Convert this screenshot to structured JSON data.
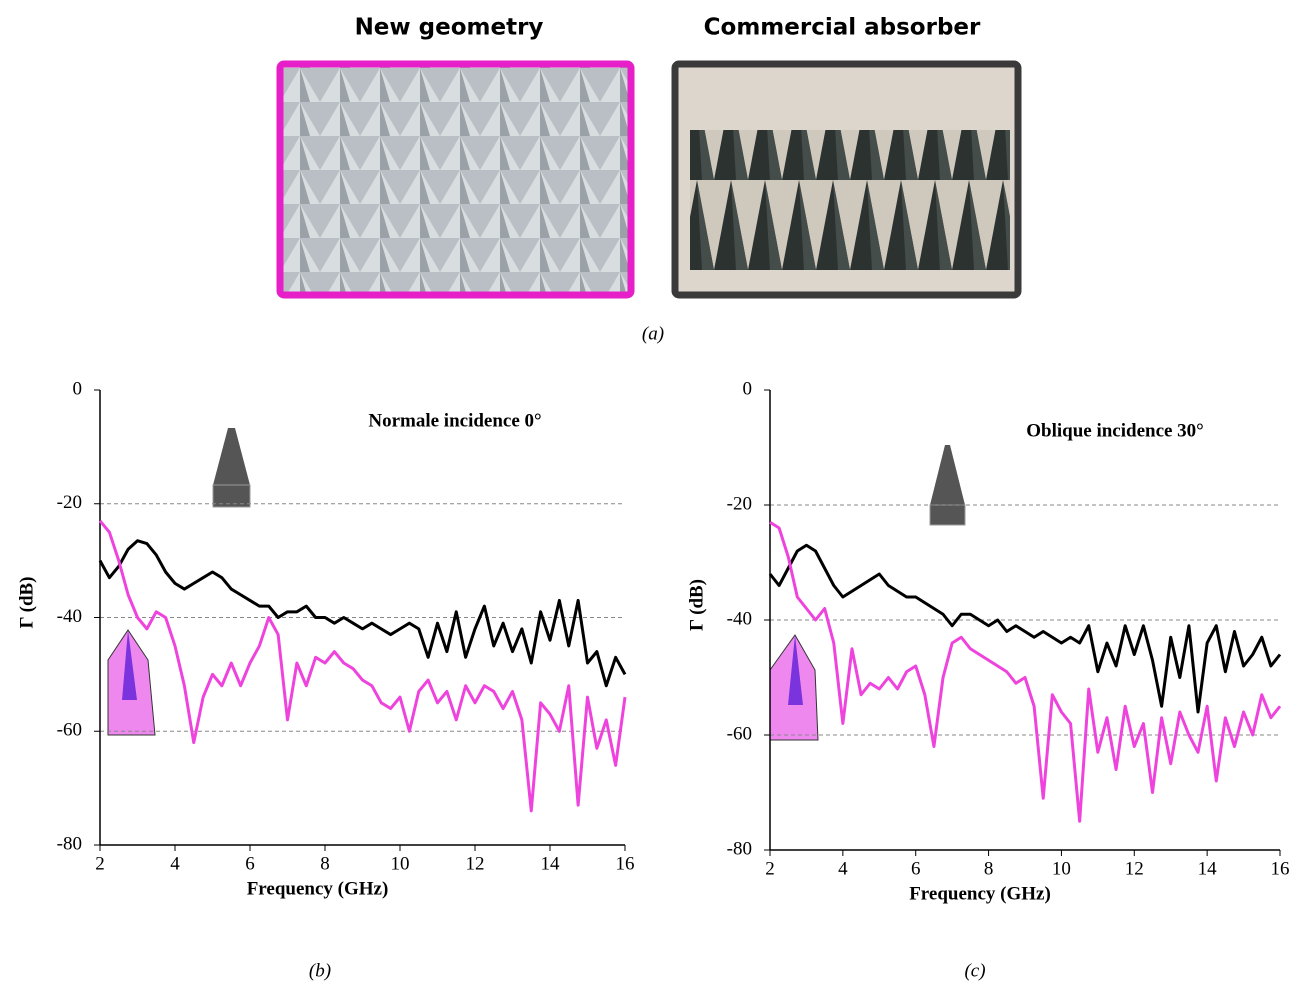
{
  "photos": [
    {
      "label": "New geometry"
    },
    {
      "label": "Commercial absorber"
    }
  ],
  "caption": "(a)",
  "chart_data": [
    {
      "type": "line",
      "annotation": "Normale incidence 0°",
      "caption": "(b)",
      "xlabel": "Frequency (GHz)",
      "ylabel": "Γ (dB)",
      "xlim": [
        2,
        16
      ],
      "ylim": [
        -80,
        0
      ],
      "xticks": [
        2,
        4,
        6,
        8,
        10,
        12,
        14,
        16
      ],
      "yticks": [
        -80,
        -60,
        -40,
        -20,
        0
      ],
      "grid": true,
      "x": [
        2,
        2.25,
        2.5,
        2.75,
        3,
        3.25,
        3.5,
        3.75,
        4,
        4.25,
        4.5,
        4.75,
        5,
        5.25,
        5.5,
        5.75,
        6,
        6.25,
        6.5,
        6.75,
        7,
        7.25,
        7.5,
        7.75,
        8,
        8.25,
        8.5,
        8.75,
        9,
        9.25,
        9.5,
        9.75,
        10,
        10.25,
        10.5,
        10.75,
        11,
        11.25,
        11.5,
        11.75,
        12,
        12.25,
        12.5,
        12.75,
        13,
        13.25,
        13.5,
        13.75,
        14,
        14.25,
        14.5,
        14.75,
        15,
        15.25,
        15.5,
        15.75,
        16
      ],
      "series": [
        {
          "color": "#000000",
          "values": [
            -30,
            -33,
            -31,
            -28,
            -26.5,
            -27,
            -29,
            -32,
            -34,
            -35,
            -34,
            -33,
            -32,
            -33,
            -35,
            -36,
            -37,
            -38,
            -38,
            -40,
            -39,
            -39,
            -38,
            -40,
            -40,
            -41,
            -40,
            -41,
            -42,
            -41,
            -42,
            -43,
            -42,
            -41,
            -42,
            -47,
            -41,
            -46,
            -39,
            -47,
            -42,
            -38,
            -45,
            -41,
            -46,
            -42,
            -48,
            -39,
            -44,
            -37,
            -45,
            -37,
            -48,
            -46,
            -52,
            -47,
            -50
          ]
        },
        {
          "color": "#ee44dd",
          "values": [
            -23,
            -25,
            -30,
            -36,
            -40,
            -42,
            -39,
            -40,
            -45,
            -52,
            -62,
            -54,
            -50,
            -52,
            -48,
            -52,
            -48,
            -45,
            -40,
            -43,
            -58,
            -48,
            -52,
            -47,
            -48,
            -46,
            -48,
            -49,
            -51,
            -52,
            -55,
            -56,
            -54,
            -60,
            -53,
            -51,
            -55,
            -53,
            -58,
            -52,
            -55,
            -52,
            -53,
            -56,
            -53,
            -58,
            -74,
            -55,
            -57,
            -60,
            -52,
            -73,
            -54,
            -63,
            -58,
            -66,
            -54
          ]
        }
      ]
    },
    {
      "type": "line",
      "annotation": "Oblique incidence 30°",
      "caption": "(c)",
      "xlabel": "Frequency (GHz)",
      "ylabel": "Γ (dB)",
      "xlim": [
        2,
        16
      ],
      "ylim": [
        -80,
        0
      ],
      "xticks": [
        2,
        4,
        6,
        8,
        10,
        12,
        14,
        16
      ],
      "yticks": [
        -80,
        -60,
        -40,
        -20,
        0
      ],
      "grid": true,
      "x": [
        2,
        2.25,
        2.5,
        2.75,
        3,
        3.25,
        3.5,
        3.75,
        4,
        4.25,
        4.5,
        4.75,
        5,
        5.25,
        5.5,
        5.75,
        6,
        6.25,
        6.5,
        6.75,
        7,
        7.25,
        7.5,
        7.75,
        8,
        8.25,
        8.5,
        8.75,
        9,
        9.25,
        9.5,
        9.75,
        10,
        10.25,
        10.5,
        10.75,
        11,
        11.25,
        11.5,
        11.75,
        12,
        12.25,
        12.5,
        12.75,
        13,
        13.25,
        13.5,
        13.75,
        14,
        14.25,
        14.5,
        14.75,
        15,
        15.25,
        15.5,
        15.75,
        16
      ],
      "series": [
        {
          "color": "#000000",
          "values": [
            -32,
            -34,
            -31,
            -28,
            -27,
            -28,
            -31,
            -34,
            -36,
            -35,
            -34,
            -33,
            -32,
            -34,
            -35,
            -36,
            -36,
            -37,
            -38,
            -39,
            -41,
            -39,
            -39,
            -40,
            -41,
            -40,
            -42,
            -41,
            -42,
            -43,
            -42,
            -43,
            -44,
            -43,
            -44,
            -41,
            -49,
            -44,
            -48,
            -41,
            -46,
            -41,
            -47,
            -55,
            -43,
            -50,
            -41,
            -56,
            -44,
            -41,
            -49,
            -42,
            -48,
            -46,
            -43,
            -48,
            -46
          ]
        },
        {
          "color": "#ee44dd",
          "values": [
            -23,
            -24,
            -29,
            -36,
            -38,
            -40,
            -38,
            -44,
            -58,
            -45,
            -53,
            -51,
            -52,
            -50,
            -52,
            -49,
            -48,
            -53,
            -62,
            -50,
            -44,
            -43,
            -45,
            -46,
            -47,
            -48,
            -49,
            -51,
            -50,
            -55,
            -71,
            -53,
            -56,
            -58,
            -75,
            -52,
            -63,
            -57,
            -66,
            -55,
            -62,
            -58,
            -70,
            -57,
            -65,
            -56,
            -60,
            -63,
            -55,
            -68,
            -57,
            -62,
            -56,
            -60,
            -53,
            -57,
            -55
          ]
        }
      ]
    }
  ]
}
